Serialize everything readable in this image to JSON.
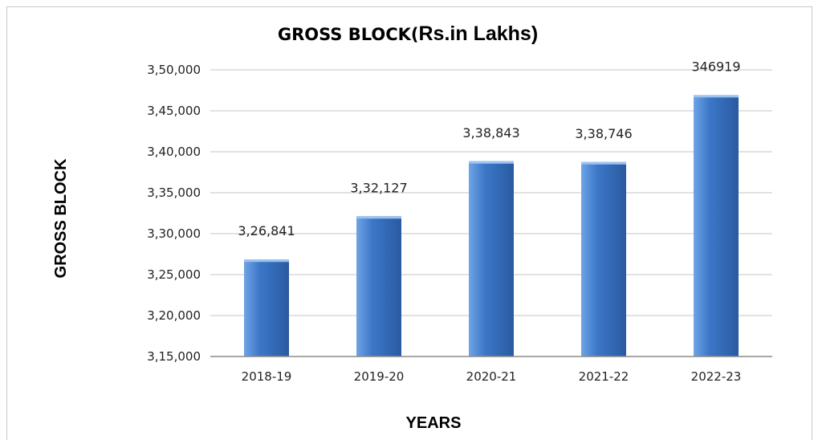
{
  "chart_data": {
    "type": "bar",
    "title_prefix": "GROSS BLOCK(",
    "title_suffix": "Rs.in Lakhs)",
    "xlabel": "YEARS",
    "ylabel": "GROSS  BLOCK",
    "categories": [
      "2018-19",
      "2019-20",
      "2020-21",
      "2021-22",
      "2022-23"
    ],
    "values": [
      326841,
      332127,
      338843,
      338746,
      346919
    ],
    "data_labels": [
      "3,26,841",
      "3,32,127",
      "3,38,843",
      "3,38,746",
      "346919"
    ],
    "ylim": [
      315000,
      350000
    ],
    "yticks": [
      315000,
      320000,
      325000,
      330000,
      335000,
      340000,
      345000,
      350000
    ],
    "ytick_labels": [
      "3,15,000",
      "3,20,000",
      "3,25,000",
      "3,30,000",
      "3,35,000",
      "3,40,000",
      "3,45,000",
      "3,50,000"
    ],
    "grid": true,
    "bar_color": "#3c78c8",
    "bar_color_light": "#6fa3e6",
    "bar_color_dark": "#2a5aa0",
    "gridline_color": "#c6c6c6"
  }
}
